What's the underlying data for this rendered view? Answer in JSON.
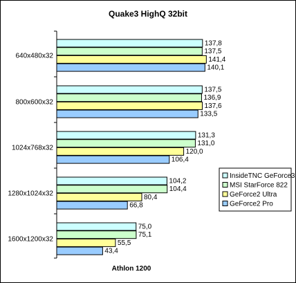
{
  "chart_data": {
    "type": "bar",
    "orientation": "horizontal",
    "title": "Quake3 HighQ 32bit",
    "xlabel": "Athlon 1200",
    "ylabel": "",
    "xlim": [
      0,
      160
    ],
    "grid": false,
    "legend_position": "right",
    "categories": [
      "640x480x32",
      "800x600x32",
      "1024x768x32",
      "1280x1024x32",
      "1600x1200x32"
    ],
    "series": [
      {
        "name": "InsideTNC GeForce3",
        "color": "#ccffff",
        "values": [
          137.8,
          137.5,
          131.3,
          104.2,
          75.0
        ],
        "labels": [
          "137,8",
          "137,5",
          "131,3",
          "104,2",
          "75,0"
        ]
      },
      {
        "name": "MSI StarForce 822",
        "color": "#ccffcc",
        "values": [
          137.5,
          136.9,
          131.0,
          104.4,
          75.1
        ],
        "labels": [
          "137,5",
          "136,9",
          "131,0",
          "104,4",
          "75,1"
        ]
      },
      {
        "name": "GeForce2 Ultra",
        "color": "#ffff99",
        "values": [
          141.4,
          137.6,
          120.0,
          80.4,
          55.5
        ],
        "labels": [
          "141,4",
          "137,6",
          "120,0",
          "80,4",
          "55,5"
        ]
      },
      {
        "name": "GeForce2 Pro",
        "color": "#99ccff",
        "values": [
          140.1,
          133.5,
          106.4,
          66.8,
          43.4
        ],
        "labels": [
          "140,1",
          "133,5",
          "106,4",
          "66,8",
          "43,4"
        ]
      }
    ]
  }
}
